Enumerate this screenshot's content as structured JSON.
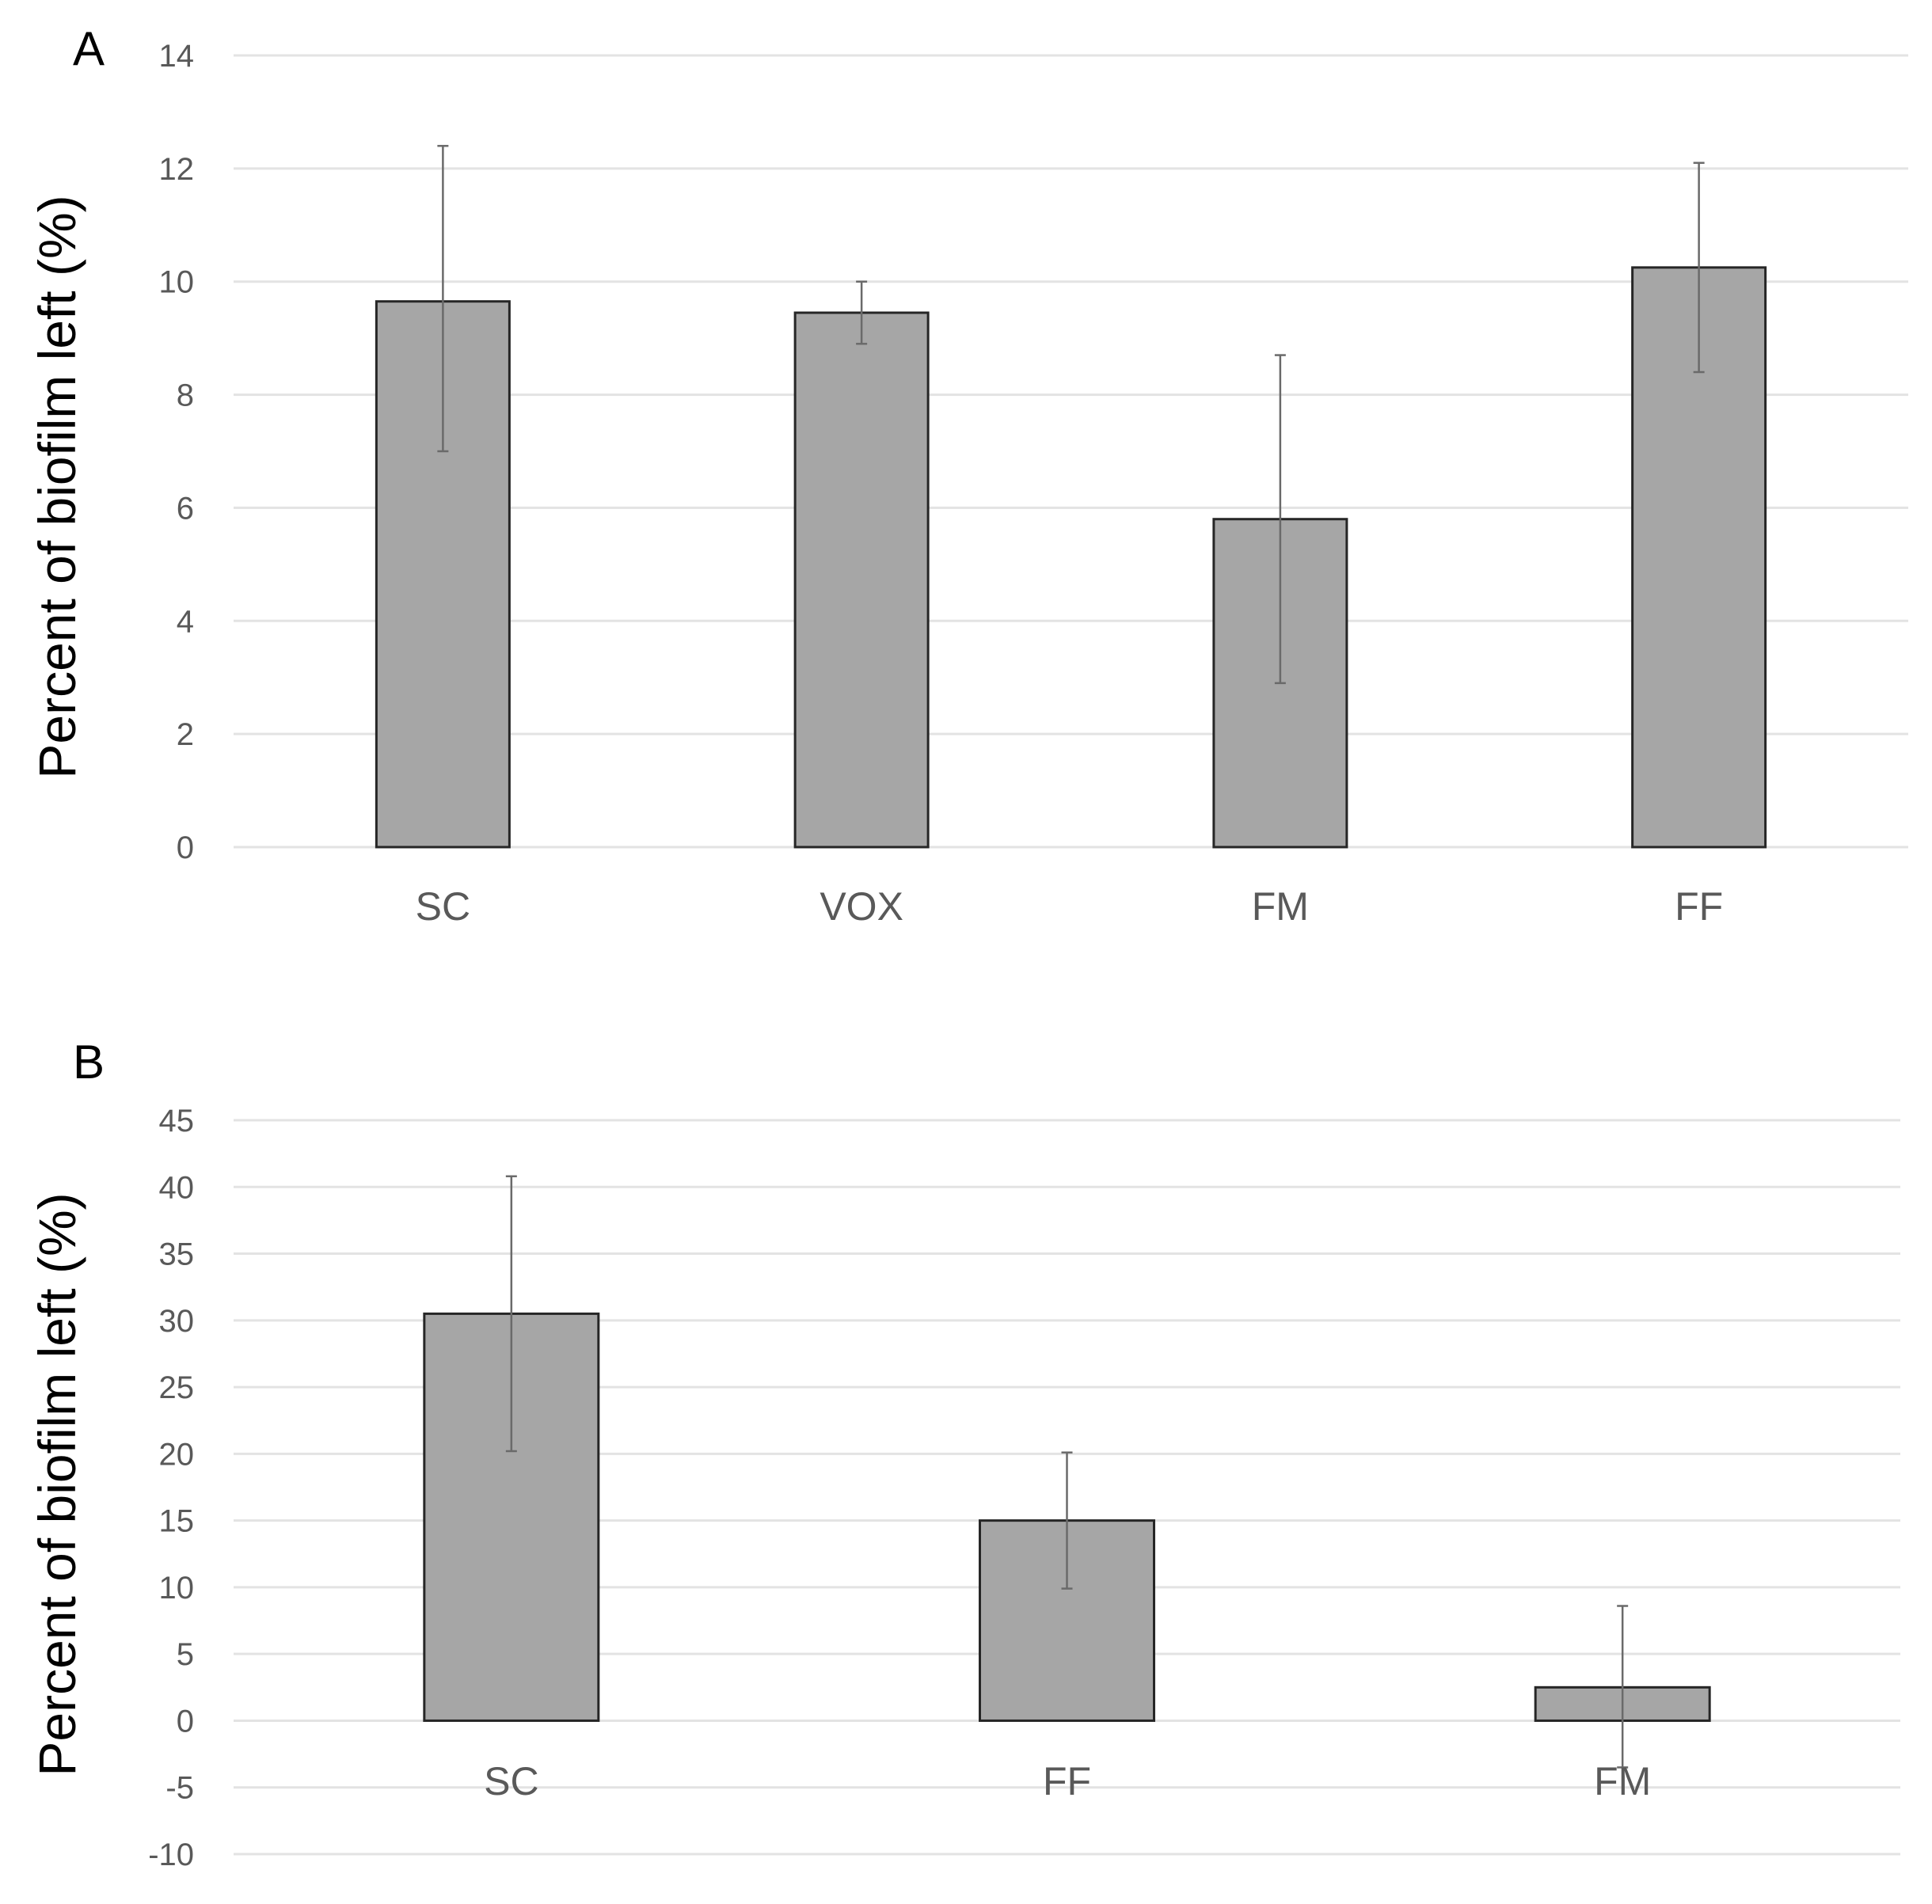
{
  "chart_data": [
    {
      "panel_label": "A",
      "type": "bar",
      "title": "",
      "xlabel": "",
      "ylabel": "Percent of biofilm left (%)",
      "ylim": [
        0,
        14
      ],
      "yticks": [
        0,
        2,
        4,
        6,
        8,
        10,
        12,
        14
      ],
      "grid": true,
      "categories": [
        "SC",
        "VOX",
        "FM",
        "FF"
      ],
      "values": [
        9.65,
        9.45,
        5.8,
        10.25
      ],
      "error_lower": [
        7.0,
        8.9,
        2.9,
        8.4
      ],
      "error_upper": [
        12.4,
        10.0,
        8.7,
        12.1
      ],
      "bar_color": "#a6a6a6"
    },
    {
      "panel_label": "B",
      "type": "bar",
      "title": "",
      "xlabel": "",
      "ylabel": "Percent of biofilm left (%)",
      "ylim": [
        -10,
        45
      ],
      "yticks": [
        -10,
        -5,
        0,
        5,
        10,
        15,
        20,
        25,
        30,
        35,
        40,
        45
      ],
      "grid": true,
      "categories": [
        "SC",
        "FF",
        "FM"
      ],
      "values": [
        30.5,
        15.0,
        2.5
      ],
      "error_lower": [
        20.2,
        9.9,
        -3.5
      ],
      "error_upper": [
        40.8,
        20.1,
        8.6
      ],
      "bar_color": "#a6a6a6"
    }
  ]
}
